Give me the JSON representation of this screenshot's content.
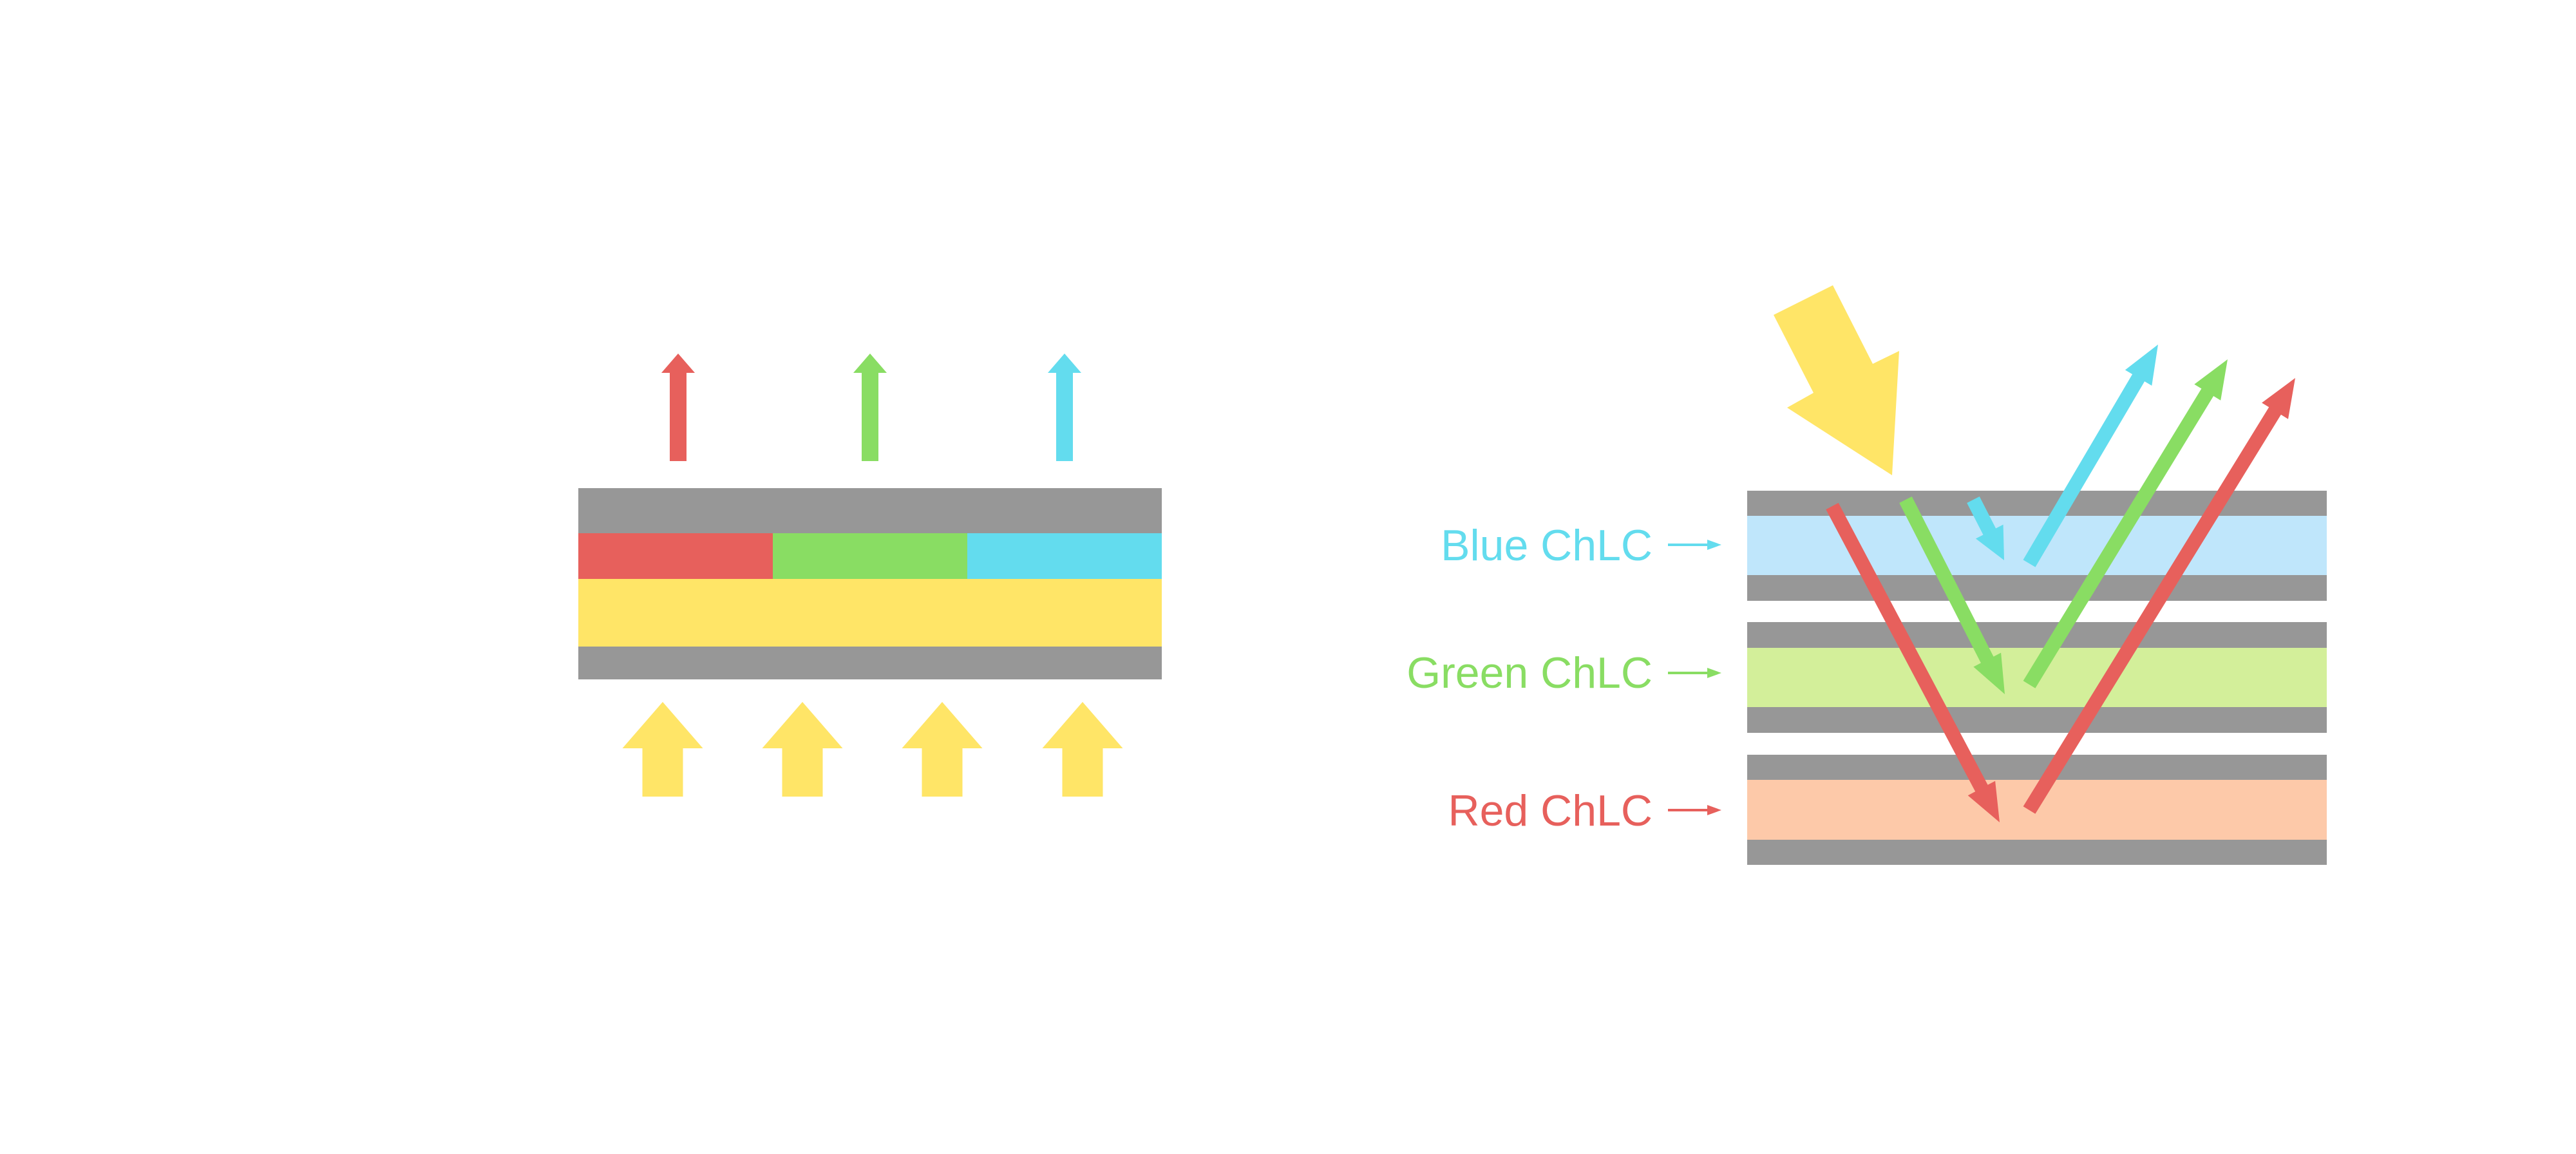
{
  "colors": {
    "gray": "#979797",
    "red": "#E7605C",
    "green": "#89DD63",
    "blue": "#63DCEE",
    "yellow": "#FFE567",
    "blue_layer": "#BFE6FB",
    "green_layer": "#D3EF9A",
    "red_layer": "#FDC9A9"
  },
  "labels": {
    "blue": "Blue ChLC",
    "green": "Green ChLC",
    "red": "Red ChLC"
  }
}
